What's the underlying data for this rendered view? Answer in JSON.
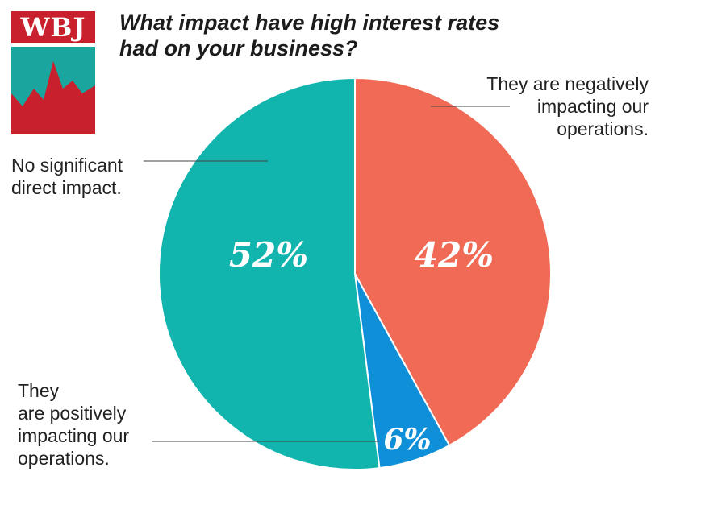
{
  "logo": {
    "text": "WBJ",
    "red": "#c8202c",
    "teal": "#1aa59e"
  },
  "title_line1": "What impact have high interest rates",
  "title_line2": "had on your business?",
  "chart_data": {
    "type": "pie",
    "title": "What impact have high interest rates had on your business?",
    "slices": [
      {
        "label": "They are negatively impacting our operations.",
        "value": 42,
        "display": "42%",
        "color": "#f06a55"
      },
      {
        "label": "They are positively impacting our operations.",
        "value": 6,
        "display": "6%",
        "color": "#0f8fd8"
      },
      {
        "label": "No significant direct impact.",
        "value": 52,
        "display": "52%",
        "color": "#12b4ae"
      }
    ],
    "start_angle_deg": 0,
    "direction": "clockwise"
  },
  "labels": {
    "negative": [
      "They are negatively",
      "impacting our",
      "operations."
    ],
    "none": [
      "No significant",
      "direct impact."
    ],
    "positive": [
      "They",
      "are positively",
      "impacting our",
      "operations."
    ]
  }
}
